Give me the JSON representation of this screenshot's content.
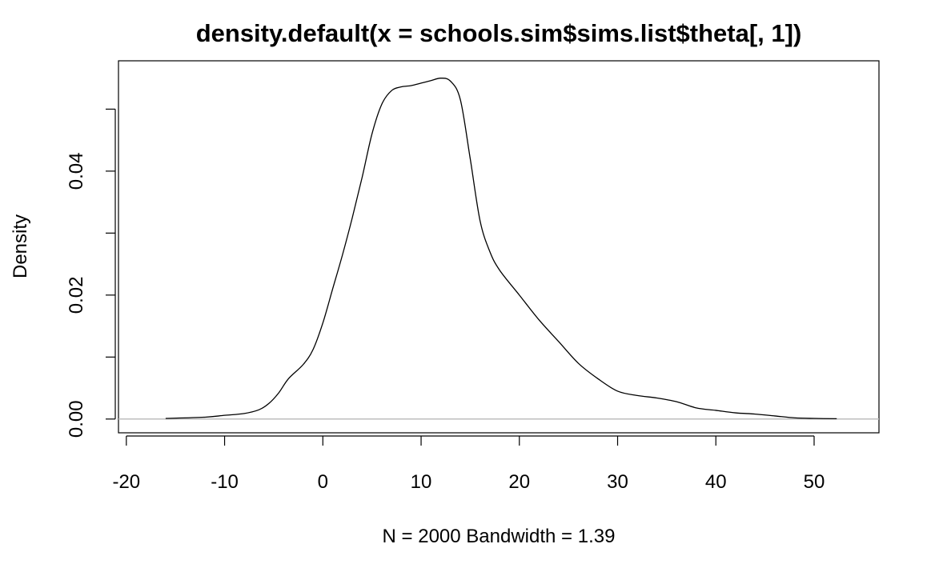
{
  "chart_data": {
    "type": "line",
    "title": "density.default(x = schools.sim$sims.list$theta[, 1])",
    "xlabel": "N = 2000   Bandwidth = 1.39",
    "ylabel": "Density",
    "xlim": [
      -20.8,
      56.6
    ],
    "ylim": [
      -0.00222,
      0.0578
    ],
    "x_ticks": [
      -20,
      -10,
      0,
      10,
      20,
      30,
      40,
      50
    ],
    "x_tick_labels": [
      "-20",
      "-10",
      "0",
      "10",
      "20",
      "30",
      "40",
      "50"
    ],
    "y_ticks": [
      0.0,
      0.01,
      0.02,
      0.03,
      0.04,
      0.05
    ],
    "y_tick_labels": [
      "0.00",
      "0.02",
      "0.04"
    ],
    "y_labeled_ticks": [
      0.0,
      0.02,
      0.04
    ],
    "baseline": 0,
    "grid": false,
    "series": [
      {
        "color": "#000000",
        "x": [
          -16.0,
          -12.0,
          -10.0,
          -8.0,
          -6.5,
          -5.5,
          -4.5,
          -3.5,
          -2.0,
          -1.0,
          0.0,
          1.0,
          2.0,
          3.0,
          4.0,
          5.0,
          6.0,
          7.0,
          8.0,
          9.0,
          10.0,
          11.0,
          12.0,
          13.0,
          14.0,
          15.0,
          16.0,
          17.0,
          18.0,
          20.0,
          22.0,
          24.0,
          26.0,
          28.0,
          30.0,
          32.0,
          34.0,
          36.0,
          38.0,
          40.0,
          42.0,
          44.0,
          46.0,
          48.0,
          50.0,
          52.3
        ],
        "y": [
          0.0001,
          0.0003,
          0.0006,
          0.0009,
          0.0015,
          0.0025,
          0.0042,
          0.0065,
          0.0088,
          0.0112,
          0.0155,
          0.021,
          0.0265,
          0.0325,
          0.039,
          0.046,
          0.0508,
          0.053,
          0.0536,
          0.0538,
          0.0542,
          0.0546,
          0.055,
          0.0545,
          0.0515,
          0.042,
          0.032,
          0.027,
          0.024,
          0.02,
          0.016,
          0.0125,
          0.009,
          0.0065,
          0.0045,
          0.0038,
          0.0034,
          0.0028,
          0.0018,
          0.0014,
          0.001,
          0.0008,
          0.0005,
          0.0002,
          0.0001,
          5e-05
        ]
      }
    ]
  },
  "colors": {
    "line": "#000000",
    "baseline": "#bebebe",
    "frame": "#000000",
    "background": "#ffffff"
  }
}
